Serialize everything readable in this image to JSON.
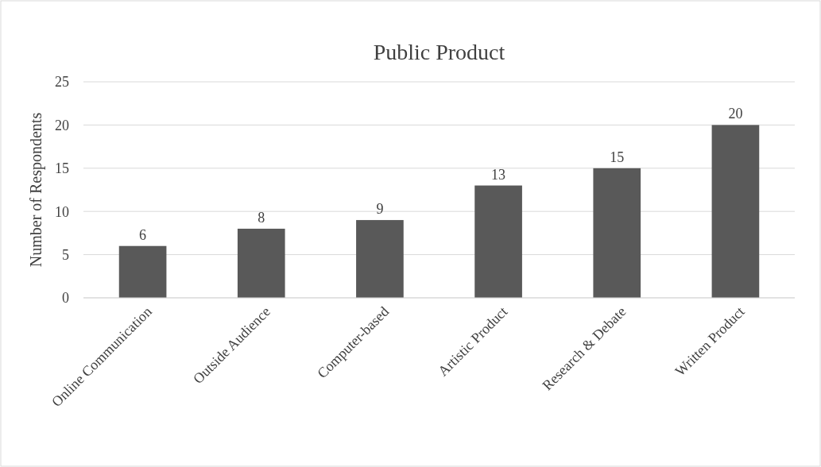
{
  "chart_data": {
    "type": "bar",
    "title": "Public Product",
    "ylabel": "Number of Respondents",
    "categories": [
      "Online Communication",
      "Outside Audience",
      "Computer-based",
      "Artistic Product",
      "Research & Debate",
      "Written Product"
    ],
    "values": [
      6,
      8,
      9,
      13,
      15,
      20
    ],
    "color": "#595959",
    "ylim": [
      0,
      25
    ],
    "yticks": [
      0,
      5,
      10,
      15,
      20,
      25
    ],
    "grid": "y",
    "data_labels": true
  }
}
